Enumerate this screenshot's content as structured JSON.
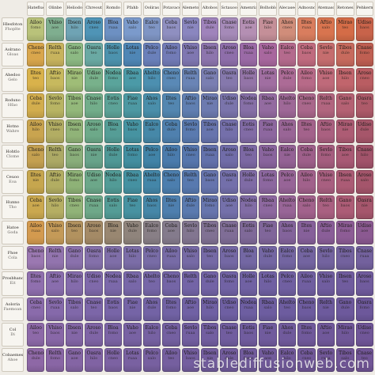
{
  "grid": {
    "columns": 19,
    "header_labels": [
      "Hateflue",
      "Olinbe",
      "Heliodo",
      "Chreoutonnad",
      "Romdo",
      "Pfahb",
      "Ooliras",
      "Potavacerd",
      "Alemeto",
      "Altobos",
      "Sctauoo",
      "Amenrias",
      "Bolhoblo",
      "Alecasees",
      "Adnosnos",
      "Atemaso",
      "Retoneshos",
      "Pehkermen"
    ],
    "row_labels": [
      [
        "Hlesfoton",
        "Fhoplte"
      ],
      [
        "Aolrano",
        "Gloas"
      ],
      [
        "Ahedoo",
        "Gelo"
      ],
      [
        "Roduno",
        "Hfao"
      ],
      [
        "Hotno",
        "Wahre"
      ],
      [
        "Hohtlo",
        "Clome"
      ],
      [
        "Ceuoo",
        "Eoa"
      ],
      [
        "Hunno",
        "Tho"
      ],
      [
        "Hatoe",
        "Goda"
      ],
      [
        "Fhoe",
        "Cola"
      ],
      [
        "Prosbhano",
        "Eit"
      ],
      [
        "Aoloria",
        "Faemoan"
      ],
      [
        "Col",
        "Di"
      ],
      [
        "Cobaemes",
        "Ahoe"
      ]
    ],
    "cell_words": [
      "Ailoo",
      "Rbaa",
      "Cnase",
      "Vhiso",
      "Ahelto",
      "Eotis",
      "Ibsen",
      "Cheno",
      "Fiae",
      "Aroso",
      "Relth",
      "Ahos",
      "Bloa",
      "Gano",
      "Iltes",
      "Vaho",
      "Oasra",
      "Aftio",
      "Ealco",
      "Holle",
      "Mirao",
      "Ceba",
      "Lotas",
      "Udiso",
      "Sevlo",
      "Pelco",
      "Nodea",
      "Tibos"
    ],
    "cell_subwords": [
      "fomo",
      "aoe",
      "hilo",
      "cneo",
      "ruaa",
      "salo",
      "teo",
      "baos",
      "nie",
      "dule"
    ],
    "band_colors": [
      [
        "#b9c27a",
        "#7fae8f",
        "#6fa3b4",
        "#4f94b6",
        "#6d90c2",
        "#7b9acb",
        "#7f95c4",
        "#8f8fc0",
        "#8a86bf",
        "#9f83bb",
        "#a58ab8",
        "#b48fb3",
        "#c48f98",
        "#d08d7a",
        "#d97d5e",
        "#d8744f",
        "#d46c47",
        "#c8634a"
      ],
      [
        "#d9a64c",
        "#c7b35d",
        "#8cb983",
        "#6aa9a3",
        "#4c92ad",
        "#4f86b5",
        "#6a80ba",
        "#727bb6",
        "#7f77b1",
        "#8d75ad",
        "#8e6eaa",
        "#9a6aa6",
        "#a8679e",
        "#b46a8d",
        "#c06b7f",
        "#c56d6e",
        "#c76a5d",
        "#bf5f52"
      ],
      [
        "#d9b24b",
        "#c7b95e",
        "#9fbd77",
        "#78b18b",
        "#5aa49b",
        "#4b9aa7",
        "#4c8fb0",
        "#5a89b6",
        "#6a84b5",
        "#7a7eb1",
        "#8578ac",
        "#9374a7",
        "#a06ea1",
        "#ac6b96",
        "#b76a88",
        "#bf6a7a",
        "#c1656c",
        "#b95d62"
      ],
      [
        "#d2ad4d",
        "#b8b463",
        "#93b87a",
        "#72ad8a",
        "#5ca297",
        "#4d98a2",
        "#4a8eaa",
        "#5386b0",
        "#607fb1",
        "#6d7aaf",
        "#7a74ab",
        "#866fa6",
        "#936ba0",
        "#9e6897",
        "#a9678b",
        "#b1657f",
        "#b46173",
        "#ad5a69"
      ],
      [
        "#c9a44f",
        "#b2ad63",
        "#90b378",
        "#6da989",
        "#559d96",
        "#4693a1",
        "#4688a8",
        "#4f80ae",
        "#5a7aaf",
        "#6774ad",
        "#746faa",
        "#816ba5",
        "#8d679f",
        "#996596",
        "#a3628b",
        "#aa6080",
        "#ad5c74",
        "#a6566a"
      ],
      [
        "#c4a050",
        "#aca965",
        "#89ae7a",
        "#68a38a",
        "#4f9896",
        "#428ea0",
        "#4183a7",
        "#4a7bac",
        "#5676ad",
        "#6371ab",
        "#706ca8",
        "#7c68a3",
        "#89649d",
        "#946295",
        "#9e5f8a",
        "#a55d7f",
        "#a85974",
        "#a1536a"
      ],
      [
        "#c6a64e",
        "#b2ad62",
        "#8eb277",
        "#6ca789",
        "#529b96",
        "#4591a1",
        "#4486a8",
        "#4c7eae",
        "#5879af",
        "#6674ad",
        "#736faa",
        "#7f6ba5",
        "#8c679f",
        "#976497",
        "#a1618b",
        "#a85f80",
        "#ab5b75",
        "#a4556b"
      ],
      [
        "#caa84f",
        "#b5ae63",
        "#91b378",
        "#6ea889",
        "#549c96",
        "#4792a1",
        "#4687a8",
        "#4e7fae",
        "#5a7aaf",
        "#6775ad",
        "#7470aa",
        "#816ca5",
        "#8d689f",
        "#986597",
        "#a2628c",
        "#a96081",
        "#ac5c76",
        "#a5566c"
      ],
      [
        "#d39a4f",
        "#c49a58",
        "#b2925f",
        "#a48a66",
        "#998771",
        "#8f847c",
        "#887f86",
        "#847b8c",
        "#827690",
        "#807193",
        "#7f6d96",
        "#7f6998",
        "#80669a",
        "#83639b",
        "#86609a",
        "#8a5e98",
        "#8d5c95",
        "#8b5991"
      ],
      [
        "#9b78b1",
        "#9274ae",
        "#8a71ac",
        "#8470aa",
        "#7f6ea8",
        "#7b6da7",
        "#786ca6",
        "#776ba6",
        "#766aa5",
        "#7569a5",
        "#7468a4",
        "#7367a3",
        "#7366a2",
        "#7365a1",
        "#7364a0",
        "#73639f",
        "#73629e",
        "#73619d"
      ],
      [
        "#8f6fae",
        "#896dad",
        "#846bab",
        "#7f69aa",
        "#7b68a9",
        "#7867a8",
        "#7666a7",
        "#7465a6",
        "#7364a6",
        "#7263a5",
        "#7162a4",
        "#7061a3",
        "#7060a2",
        "#705fa1",
        "#705ea0",
        "#705d9f",
        "#705c9e",
        "#705b9d"
      ],
      [
        "#8a6bab",
        "#8569aa",
        "#8068a9",
        "#7c66a8",
        "#7865a7",
        "#7564a6",
        "#7363a5",
        "#7162a4",
        "#7061a4",
        "#6f60a3",
        "#6e5fa2",
        "#6d5ea1",
        "#6d5da0",
        "#6d5c9f",
        "#6d5b9e",
        "#6d5a9d",
        "#6d599c",
        "#6d589b"
      ],
      [
        "#8d69a8",
        "#8867a7",
        "#8366a6",
        "#7f64a5",
        "#7b63a4",
        "#7862a3",
        "#7661a2",
        "#7460a1",
        "#735fa1",
        "#725ea0",
        "#715d9f",
        "#705c9e",
        "#705b9d",
        "#705a9c",
        "#70599b",
        "#70589a",
        "#705799",
        "#705698"
      ],
      [
        "#8e68a6",
        "#8966a5",
        "#8465a4",
        "#8063a3",
        "#7c62a2",
        "#7961a1",
        "#7760a0",
        "#755f9f",
        "#745e9f",
        "#735d9e",
        "#725c9d",
        "#715b9c",
        "#715a9b",
        "#71599a",
        "#715899",
        "#715798",
        "#715697",
        "#715596"
      ]
    ],
    "header_color": "#b07c98",
    "orb_colors": [
      "#f2c84b",
      "#e8b940",
      "#d7a83b",
      "#7fa0b8",
      "#5c86a8",
      "#4a7396",
      "#6c8fb0",
      "#c9a23e"
    ]
  },
  "watermark": "stablediffusionweb.com"
}
